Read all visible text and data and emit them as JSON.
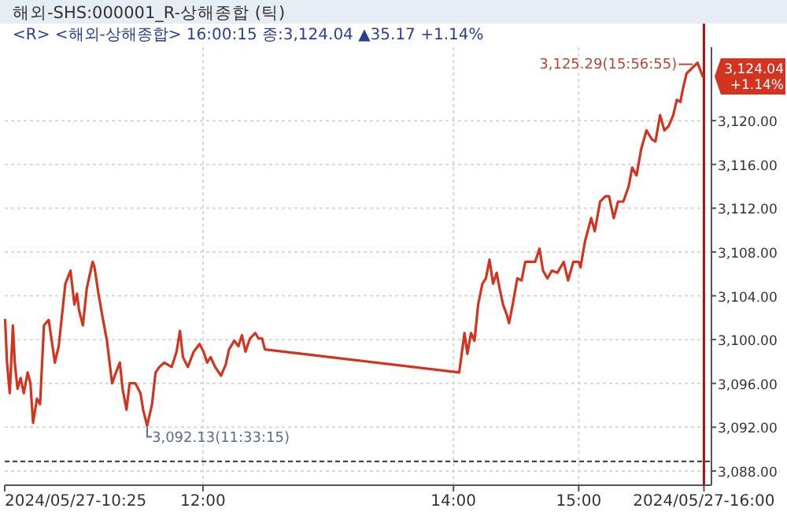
{
  "chart_data": {
    "type": "line",
    "title": "해외-SHS:000001_R-상해종합 (틱)",
    "subtitle": "<R> <해외-상해종합> 16:00:15 종:3,124.04 ▲35.17 +1.14%",
    "x": [
      10.42,
      10.435,
      10.457,
      10.482,
      10.497,
      10.519,
      10.544,
      10.569,
      10.6,
      10.622,
      10.643,
      10.674,
      10.699,
      10.73,
      10.768,
      10.792,
      10.817,
      10.848,
      10.87,
      10.901,
      10.942,
      10.973,
      10.994,
      11.01,
      11.041,
      11.072,
      11.119,
      11.134,
      11.165,
      11.202,
      11.233,
      11.274,
      11.305,
      11.336,
      11.358,
      11.389,
      11.414,
      11.46,
      11.501,
      11.522,
      11.554,
      11.593,
      11.621,
      11.652,
      11.691,
      11.75,
      11.789,
      11.816,
      11.84,
      11.879,
      11.926,
      11.973,
      12.004,
      12.033,
      12.061,
      12.097,
      12.144,
      12.181,
      12.208,
      12.25,
      12.283,
      12.311,
      12.339,
      12.375,
      12.417,
      12.444,
      12.472,
      12.494,
      14.046,
      14.088,
      14.111,
      14.14,
      14.168,
      14.197,
      14.231,
      14.259,
      14.288,
      14.316,
      14.345,
      14.368,
      14.396,
      14.425,
      14.444,
      14.473,
      14.51,
      14.544,
      14.573,
      14.615,
      14.652,
      14.687,
      14.715,
      14.75,
      14.786,
      14.829,
      14.88,
      14.915,
      14.957,
      15.0,
      15.014,
      15.051,
      15.1,
      15.128,
      15.171,
      15.214,
      15.242,
      15.28,
      15.314,
      15.356,
      15.399,
      15.427,
      15.462,
      15.499,
      15.541,
      15.584,
      15.613,
      15.65,
      15.684,
      15.718,
      15.755,
      15.784,
      15.812,
      15.832,
      15.861,
      15.949,
      15.99
    ],
    "series": [
      {
        "color": "#d2341f",
        "values": [
          3101.8,
          3097.9,
          3095.1,
          3101.3,
          3097.9,
          3095.5,
          3096.5,
          3095.1,
          3097.0,
          3096.0,
          3092.4,
          3094.6,
          3094.1,
          3101.3,
          3101.8,
          3099.9,
          3097.9,
          3099.4,
          3101.8,
          3105.1,
          3106.3,
          3103.2,
          3104.2,
          3102.7,
          3101.3,
          3104.7,
          3107.1,
          3106.6,
          3104.2,
          3101.8,
          3099.9,
          3096.0,
          3097.0,
          3097.9,
          3095.5,
          3093.6,
          3096.0,
          3096.0,
          3095.1,
          3093.6,
          3092.13,
          3094.1,
          3097.0,
          3097.5,
          3097.9,
          3097.5,
          3098.9,
          3100.8,
          3098.4,
          3097.5,
          3098.9,
          3099.6,
          3098.9,
          3097.9,
          3098.4,
          3097.5,
          3096.7,
          3097.7,
          3099.1,
          3099.9,
          3099.4,
          3100.4,
          3098.9,
          3100.1,
          3100.6,
          3100.1,
          3100.1,
          3099.1,
          3097.0,
          3100.6,
          3098.7,
          3100.6,
          3099.9,
          3103.2,
          3105.1,
          3105.6,
          3107.3,
          3105.1,
          3106.1,
          3104.7,
          3103.2,
          3102.3,
          3101.5,
          3103.2,
          3105.6,
          3105.4,
          3107.1,
          3107.1,
          3107.1,
          3108.3,
          3106.3,
          3105.6,
          3106.3,
          3106.1,
          3107.1,
          3105.4,
          3107.1,
          3107.1,
          3106.6,
          3109.0,
          3111.1,
          3109.9,
          3112.6,
          3113.1,
          3113.1,
          3111.1,
          3112.6,
          3112.6,
          3114.0,
          3115.7,
          3115.0,
          3117.4,
          3119.1,
          3118.3,
          3118.1,
          3120.5,
          3119.1,
          3119.5,
          3120.5,
          3121.9,
          3121.7,
          3122.9,
          3124.3,
          3125.29,
          3124.04
        ]
      }
    ],
    "xlim": [
      10.4167,
      16.06
    ],
    "xticks": [
      {
        "value": 10.4167,
        "label": "2024/05/27-10:25"
      },
      {
        "value": 12,
        "label": "12:00"
      },
      {
        "value": 14,
        "label": "14:00"
      },
      {
        "value": 15,
        "label": "15:00"
      },
      {
        "value": 16,
        "label": "2024/05/27-16:00"
      }
    ],
    "ylim": [
      3086.7,
      3126.7
    ],
    "yticks": [
      {
        "value": 3088,
        "label": "3,088.00"
      },
      {
        "value": 3092,
        "label": "3,092.00"
      },
      {
        "value": 3096,
        "label": "3,096.00"
      },
      {
        "value": 3100,
        "label": "3,100.00"
      },
      {
        "value": 3104,
        "label": "3,104.00"
      },
      {
        "value": 3108,
        "label": "3,108.00"
      },
      {
        "value": 3112,
        "label": "3,112.00"
      },
      {
        "value": 3116,
        "label": "3,116.00"
      },
      {
        "value": 3120,
        "label": "3,120.00"
      }
    ],
    "grid": true,
    "ref_lines": [
      {
        "axis": "y",
        "value": 3088.87,
        "color": "#333333",
        "line_style": "dashed"
      },
      {
        "axis": "x",
        "value": 16,
        "color": "#b01010",
        "line_style": "solid"
      }
    ],
    "annotations": [
      {
        "text": "3,092.13(11:33:15)",
        "x": 11.554,
        "y": 3092.13
      },
      {
        "text": "3,125.29(15:56:55)",
        "x": 15.949,
        "y": 3125.29
      },
      {
        "text": "3,124.04\n+1.14%",
        "x": 15.99,
        "y": 3124.04
      }
    ]
  }
}
